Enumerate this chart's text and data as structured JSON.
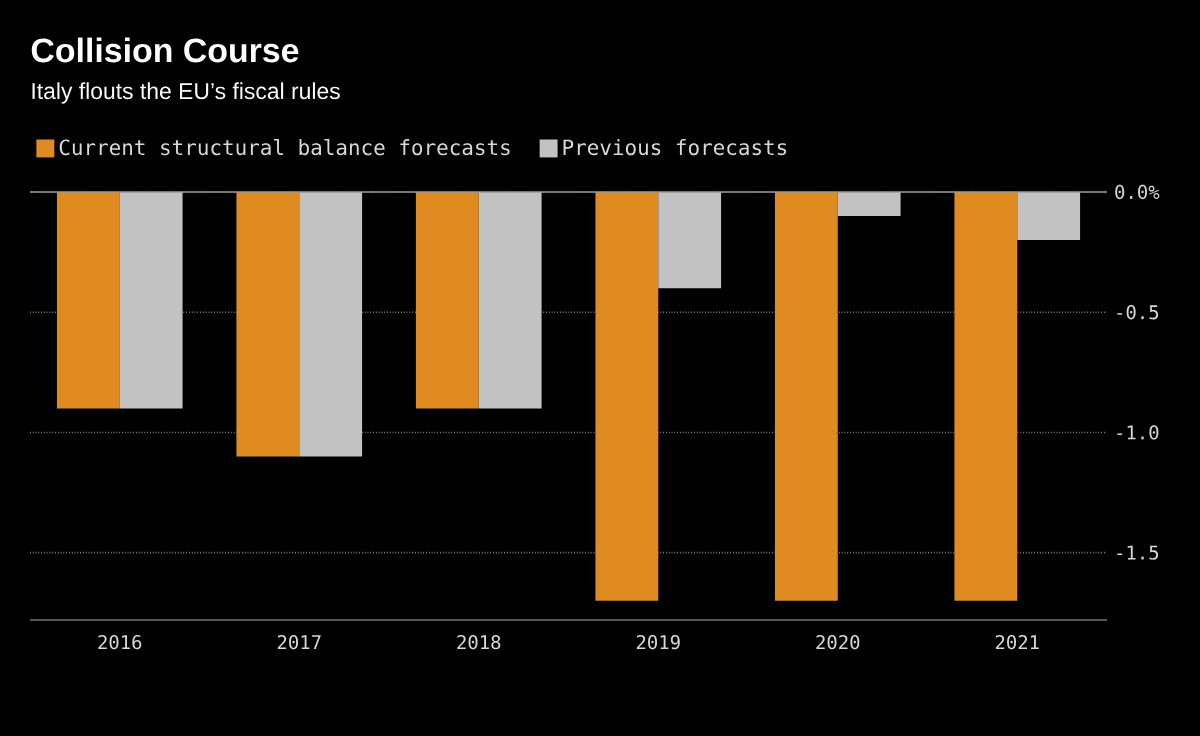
{
  "chart_data": {
    "type": "bar",
    "title": "Collision Course",
    "subtitle": "Italy flouts the EU’s fiscal rules",
    "categories": [
      "2016",
      "2017",
      "2018",
      "2019",
      "2020",
      "2021"
    ],
    "series": [
      {
        "name": "Current structural balance forecasts",
        "color": "#e08b22",
        "values": [
          -0.9,
          -1.1,
          -0.9,
          -1.7,
          -1.7,
          -1.7
        ]
      },
      {
        "name": "Previous forecasts",
        "color": "#c2c2c2",
        "values": [
          -0.9,
          -1.1,
          -0.9,
          -0.4,
          -0.1,
          -0.2
        ]
      }
    ],
    "ylim": [
      -1.78,
      0
    ],
    "yticks": [
      {
        "value": 0,
        "label": "0.0%"
      },
      -0.5,
      {
        "value": -1.0,
        "label": "-1.0"
      },
      -1.5
    ],
    "grid": "y",
    "legend": "top left"
  }
}
